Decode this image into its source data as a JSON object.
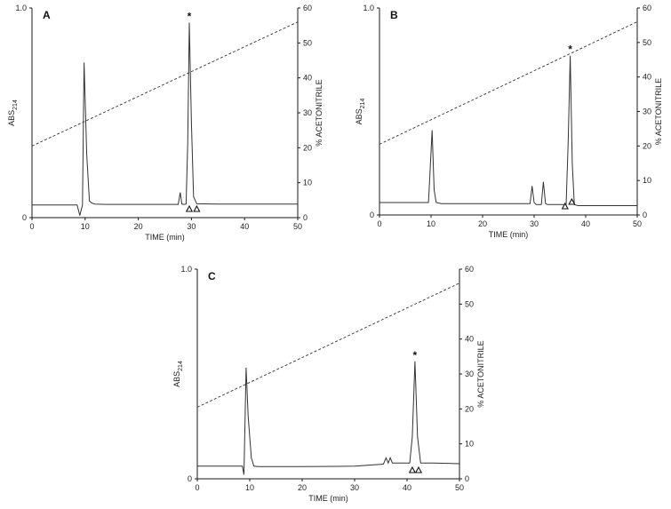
{
  "chart_data": [
    {
      "panel": "A",
      "type": "line",
      "xlabel": "TIME (min)",
      "ylabel_left": "ABS",
      "ylabel_left_sub": "214",
      "ylabel_right": "% ACETONITRILE",
      "xlim": [
        0,
        50
      ],
      "ylim_left": [
        0,
        1.0
      ],
      "ylim_right": [
        0,
        60
      ],
      "x_ticks": [
        0,
        10,
        20,
        30,
        40,
        50
      ],
      "y_left_ticks": [
        {
          "v": 0,
          "label": "0"
        },
        {
          "v": 1.0,
          "label": "1.0"
        }
      ],
      "y_right_ticks": [
        0,
        10,
        20,
        30,
        40,
        50,
        60
      ],
      "series": [
        {
          "style": "solid",
          "axis": "left",
          "x": [
            0,
            8.5,
            9.0,
            9.5,
            9.8,
            10.3,
            10.8,
            11.2,
            11.8,
            14,
            20,
            27.5,
            27.9,
            28.2,
            28.6,
            29.0,
            29.3,
            29.6,
            30.0,
            30.4,
            31.0,
            35,
            40,
            50
          ],
          "y": [
            0.06,
            0.06,
            0.01,
            0.06,
            0.74,
            0.3,
            0.08,
            0.07,
            0.065,
            0.063,
            0.063,
            0.063,
            0.12,
            0.065,
            0.063,
            0.065,
            0.35,
            0.93,
            0.45,
            0.1,
            0.066,
            0.065,
            0.065,
            0.065
          ]
        },
        {
          "style": "dashed",
          "axis": "right",
          "x": [
            0,
            50
          ],
          "y": [
            20.5,
            56
          ]
        }
      ],
      "peak_star": {
        "x": 29.6,
        "label": "*"
      },
      "triangles": [
        29.6,
        31.0
      ]
    },
    {
      "panel": "B",
      "type": "line",
      "xlabel": "TIME (min)",
      "ylabel_left": "ABS",
      "ylabel_left_sub": "214",
      "ylabel_right": "% ACETONITRILE",
      "xlim": [
        0,
        50
      ],
      "ylim_left": [
        0,
        1.0
      ],
      "ylim_right": [
        0,
        60
      ],
      "x_ticks": [
        0,
        10,
        20,
        30,
        40,
        50
      ],
      "y_left_ticks": [
        {
          "v": 0,
          "label": "0"
        },
        {
          "v": 1.0,
          "label": "1.0"
        }
      ],
      "y_right_ticks": [
        0,
        10,
        20,
        30,
        40,
        50,
        60
      ],
      "series": [
        {
          "style": "solid",
          "axis": "left",
          "x": [
            0,
            9.5,
            9.8,
            10.2,
            10.6,
            11.0,
            12,
            20,
            29.2,
            29.6,
            30.0,
            30.4,
            31.4,
            31.8,
            32.2,
            32.6,
            33,
            36.2,
            36.6,
            37.0,
            37.4,
            37.8,
            38.5,
            45,
            50
          ],
          "y": [
            0.06,
            0.06,
            0.2,
            0.41,
            0.12,
            0.06,
            0.055,
            0.055,
            0.055,
            0.14,
            0.06,
            0.05,
            0.05,
            0.16,
            0.055,
            0.05,
            0.05,
            0.05,
            0.35,
            0.77,
            0.25,
            0.05,
            0.045,
            0.045,
            0.045
          ]
        },
        {
          "style": "dashed",
          "axis": "right",
          "x": [
            0,
            50
          ],
          "y": [
            20.5,
            56
          ]
        }
      ],
      "peak_star": {
        "x": 37.0,
        "label": "*"
      },
      "triangles": [
        36.0,
        37.3
      ]
    },
    {
      "panel": "C",
      "type": "line",
      "xlabel": "TIME (min)",
      "ylabel_left": "ABS",
      "ylabel_left_sub": "214",
      "ylabel_right": "% ACETONITRILE",
      "xlim": [
        0,
        50
      ],
      "ylim_left": [
        0,
        1.0
      ],
      "ylim_right": [
        0,
        60
      ],
      "x_ticks": [
        0,
        10,
        20,
        30,
        40,
        50
      ],
      "y_left_ticks": [
        {
          "v": 0,
          "label": "0"
        },
        {
          "v": 1.0,
          "label": "1.0"
        }
      ],
      "y_right_ticks": [
        0,
        10,
        20,
        30,
        40,
        50,
        60
      ],
      "series": [
        {
          "style": "solid",
          "axis": "left",
          "x": [
            0,
            8.6,
            8.9,
            9.3,
            9.7,
            10.3,
            10.8,
            11.5,
            20,
            30,
            35.5,
            36.0,
            36.4,
            36.8,
            37.2,
            37.8,
            40.5,
            41.0,
            41.5,
            42.0,
            42.6,
            45,
            50
          ],
          "y": [
            0.06,
            0.06,
            0.02,
            0.53,
            0.3,
            0.1,
            0.06,
            0.058,
            0.058,
            0.06,
            0.07,
            0.1,
            0.075,
            0.1,
            0.075,
            0.075,
            0.075,
            0.2,
            0.56,
            0.2,
            0.075,
            0.075,
            0.072
          ]
        },
        {
          "style": "dashed",
          "axis": "right",
          "x": [
            0,
            50
          ],
          "y": [
            20.5,
            56
          ]
        }
      ],
      "peak_star": {
        "x": 41.5,
        "label": "*"
      },
      "triangles": [
        41.0,
        42.2
      ]
    }
  ]
}
